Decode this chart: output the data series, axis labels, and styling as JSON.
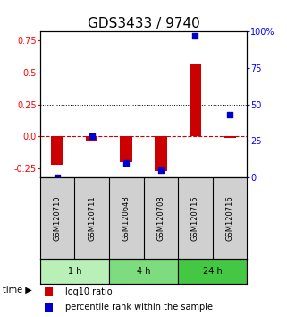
{
  "title": "GDS3433 / 9740",
  "samples": [
    "GSM120710",
    "GSM120711",
    "GSM120648",
    "GSM120708",
    "GSM120715",
    "GSM120716"
  ],
  "log10_ratio": [
    -0.22,
    -0.04,
    -0.2,
    -0.27,
    0.57,
    -0.01
  ],
  "percentile_rank": [
    0.0,
    28.0,
    10.0,
    5.0,
    97.0,
    43.0
  ],
  "groups": [
    {
      "label": "1 h",
      "indices": [
        0,
        1
      ],
      "color": "#b8f0b8"
    },
    {
      "label": "4 h",
      "indices": [
        2,
        3
      ],
      "color": "#7ddc7d"
    },
    {
      "label": "24 h",
      "indices": [
        4,
        5
      ],
      "color": "#44c844"
    }
  ],
  "left_yticks": [
    -0.25,
    0.0,
    0.25,
    0.5,
    0.75
  ],
  "right_yticks": [
    0,
    25,
    50,
    75,
    100
  ],
  "right_ylabels": [
    "0",
    "25",
    "50",
    "75",
    "100%"
  ],
  "ylim_left": [
    -0.32,
    0.82
  ],
  "bar_color": "#cc0000",
  "dot_color": "#0000cc",
  "hline_color": "#cc0000",
  "hline_style": "--",
  "dotted_lines": [
    0.25,
    0.5
  ],
  "bar_width": 0.35,
  "dot_size": 25,
  "title_fontsize": 11,
  "tick_fontsize": 7,
  "label_fontsize": 7,
  "sample_fontsize": 6,
  "time_label": "time ▶",
  "legend_red": "log10 ratio",
  "legend_blue": "percentile rank within the sample",
  "bg_plot": "#ffffff",
  "bg_sample": "#d0d0d0"
}
